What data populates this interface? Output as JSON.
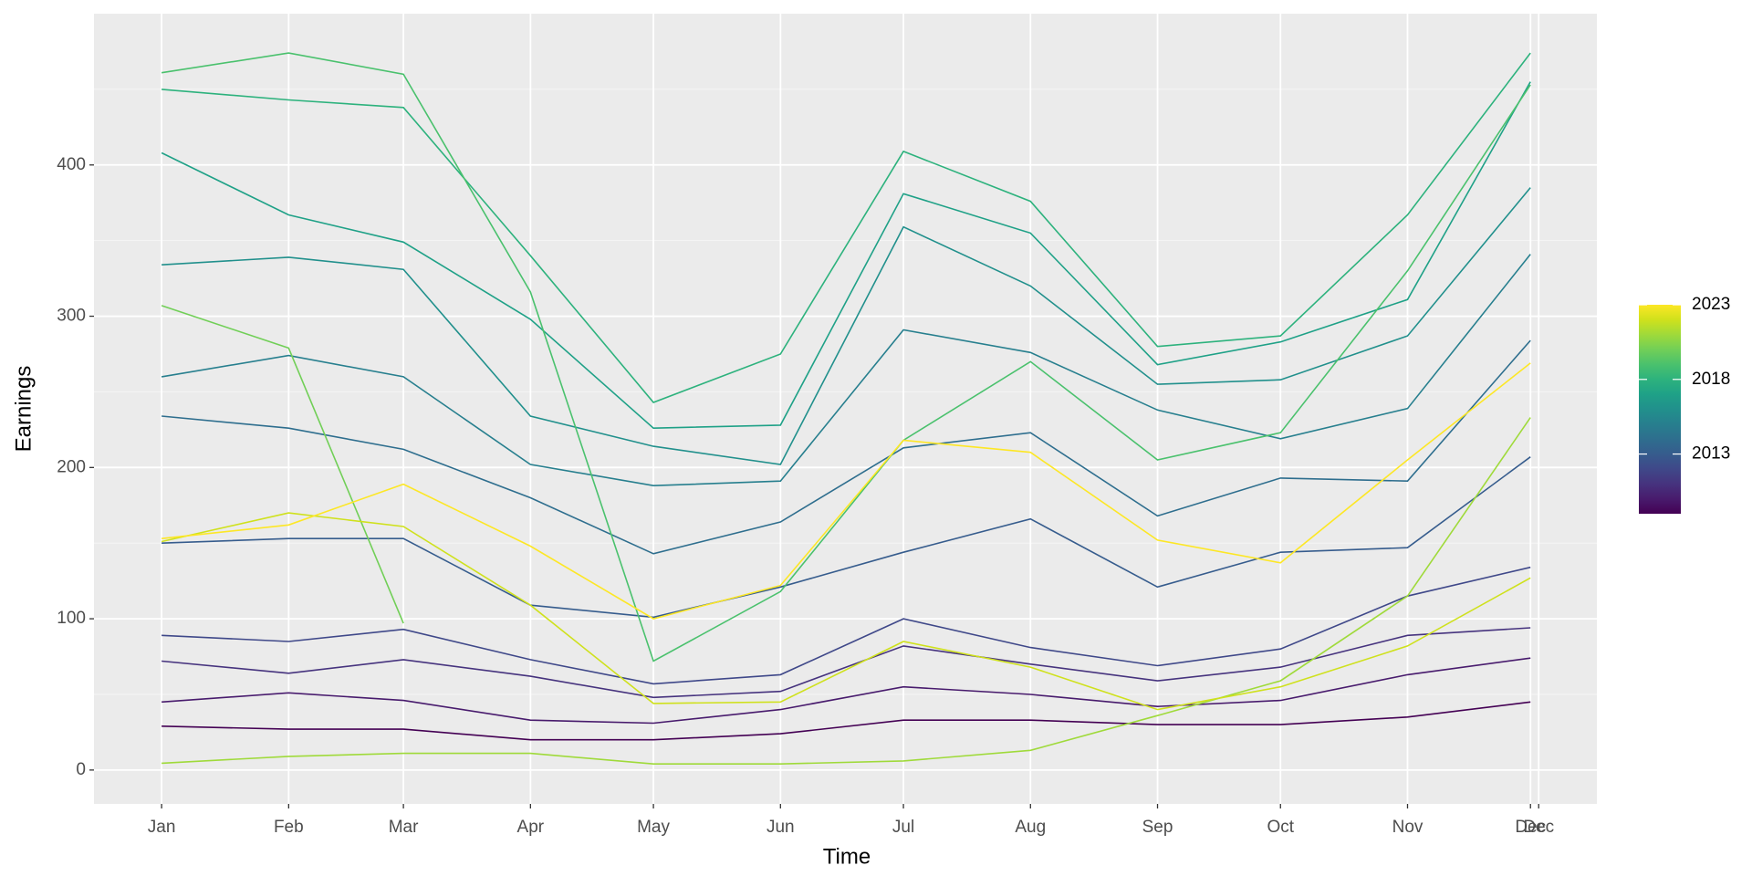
{
  "chart_data": {
    "type": "line",
    "xlabel": "Time",
    "ylabel": "Earnings",
    "x": [
      0,
      31,
      59,
      90,
      120,
      151,
      181,
      212,
      243,
      273,
      304,
      334
    ],
    "xlim": [
      -16.5,
      350.2
    ],
    "xticks": [
      {
        "value": 0,
        "label": "Jan"
      },
      {
        "value": 31,
        "label": "Feb"
      },
      {
        "value": 59,
        "label": "Mar"
      },
      {
        "value": 90,
        "label": "Apr"
      },
      {
        "value": 120,
        "label": "May"
      },
      {
        "value": 151,
        "label": "Jun"
      },
      {
        "value": 181,
        "label": "Jul"
      },
      {
        "value": 212,
        "label": "Aug"
      },
      {
        "value": 243,
        "label": "Sep"
      },
      {
        "value": 273,
        "label": "Oct"
      },
      {
        "value": 304,
        "label": "Nov"
      },
      {
        "value": 334,
        "label": "Dec"
      },
      {
        "value": 336,
        "label": "Dec"
      }
    ],
    "ylim": [
      -22.4,
      500
    ],
    "yticks": [
      0,
      100,
      200,
      300,
      400
    ],
    "grid": true,
    "series": [
      {
        "color": "#440154",
        "values": [
          29,
          27,
          27,
          20,
          20,
          24,
          33,
          33,
          30,
          30,
          35,
          45
        ]
      },
      {
        "color": "#481b6d",
        "values": [
          45,
          51,
          46,
          33,
          31,
          40,
          55,
          50,
          42,
          46,
          63,
          74
        ]
      },
      {
        "color": "#46337e",
        "values": [
          72,
          64,
          73,
          62,
          48,
          52,
          82,
          70,
          59,
          68,
          89,
          94
        ]
      },
      {
        "color": "#3f4889",
        "values": [
          89,
          85,
          93,
          73,
          57,
          63,
          100,
          81,
          69,
          80,
          115,
          134
        ]
      },
      {
        "color": "#365c8d",
        "values": [
          150,
          153,
          153,
          109,
          101,
          121,
          144,
          166,
          121,
          144,
          147,
          207
        ]
      },
      {
        "color": "#2e6e8e",
        "values": [
          234,
          226,
          212,
          180,
          143,
          164,
          213,
          223,
          168,
          193,
          191,
          284
        ]
      },
      {
        "color": "#277f8e",
        "values": [
          260,
          274,
          260,
          202,
          188,
          191,
          291,
          276,
          238,
          219,
          239,
          341
        ]
      },
      {
        "color": "#21908c",
        "values": [
          334,
          339,
          331,
          234,
          214,
          202,
          359,
          320,
          255,
          258,
          287,
          385
        ]
      },
      {
        "color": "#1fa187",
        "values": [
          408,
          367,
          349,
          298,
          226,
          228,
          381,
          355,
          268,
          283,
          311,
          455
        ]
      },
      {
        "color": "#2db27d",
        "values": [
          450,
          443,
          438,
          340,
          243,
          275,
          409,
          376,
          280,
          287,
          367,
          474
        ]
      },
      {
        "color": "#4ac16d",
        "values": [
          461,
          474,
          460,
          316,
          72,
          118,
          218,
          270,
          205,
          223,
          330,
          453
        ]
      },
      {
        "color": "#71cf57",
        "values": [
          307,
          279,
          97,
          null,
          null,
          null,
          null,
          null,
          null,
          null,
          null,
          null
        ]
      },
      {
        "color": "#9fda3a",
        "values": [
          4.5,
          9,
          11,
          11,
          4,
          4,
          6,
          13,
          36,
          59,
          115,
          233
        ]
      },
      {
        "color": "#cfe11c",
        "values": [
          151,
          170,
          161,
          109,
          44,
          45,
          85,
          68,
          40,
          55,
          82,
          127
        ]
      },
      {
        "color": "#fde725",
        "values": [
          153,
          162,
          189,
          148,
          100,
          122,
          218,
          210,
          152,
          137,
          205,
          269
        ]
      }
    ],
    "colorbar": {
      "colors": [
        "#440154",
        "#481b6d",
        "#46337e",
        "#3f4889",
        "#365c8d",
        "#2e6e8e",
        "#277f8e",
        "#21908c",
        "#1fa187",
        "#2db27d",
        "#4ac16d",
        "#71cf57",
        "#9fda3a",
        "#cfe11c",
        "#fde725"
      ],
      "lim": [
        2009,
        2023
      ],
      "ticks": [
        2013,
        2018,
        2023
      ]
    }
  }
}
